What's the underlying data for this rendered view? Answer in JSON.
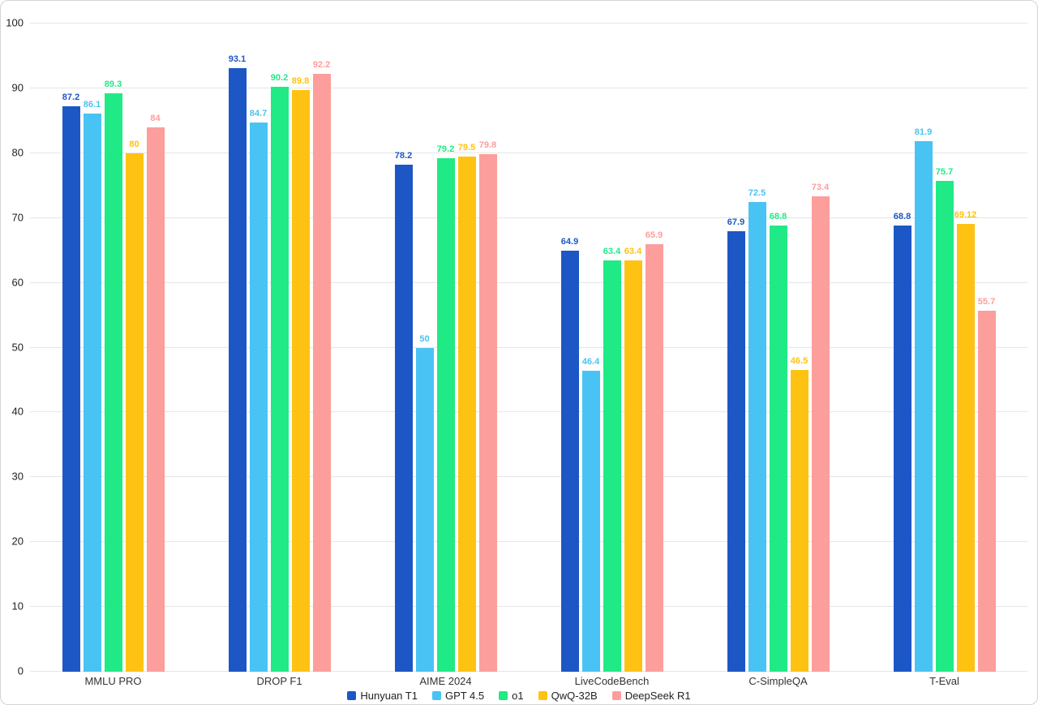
{
  "chart_data": {
    "type": "bar",
    "title": "",
    "xlabel": "",
    "ylabel": "",
    "ylim": [
      0,
      100
    ],
    "yticks": [
      0,
      10,
      20,
      30,
      40,
      50,
      60,
      70,
      80,
      90,
      100
    ],
    "grid": true,
    "legend_position": "bottom",
    "categories": [
      "MMLU PRO",
      "DROP F1",
      "AIME 2024",
      "LiveCodeBench",
      "C-SimpleQA",
      "T-Eval"
    ],
    "series": [
      {
        "name": "Hunyuan T1",
        "color": "#1c57c5",
        "values": [
          87.2,
          93.1,
          78.2,
          64.9,
          67.9,
          68.8
        ]
      },
      {
        "name": "GPT 4.5",
        "color": "#49c3f3",
        "values": [
          86.1,
          84.7,
          50,
          46.4,
          72.5,
          81.9
        ]
      },
      {
        "name": "o1",
        "color": "#20ea85",
        "values": [
          89.3,
          90.2,
          79.2,
          63.4,
          68.8,
          75.7
        ]
      },
      {
        "name": "QwQ-32B",
        "color": "#fec212",
        "values": [
          80,
          89.8,
          79.5,
          63.4,
          46.5,
          69.12
        ]
      },
      {
        "name": "DeepSeek R1",
        "color": "#fc9e9b",
        "values": [
          84,
          92.2,
          79.8,
          65.9,
          73.4,
          55.7
        ]
      }
    ],
    "colors": {
      "grid": "#e6e6e6",
      "axis_text": "#1f1f1f",
      "category_text": "#333333"
    }
  }
}
